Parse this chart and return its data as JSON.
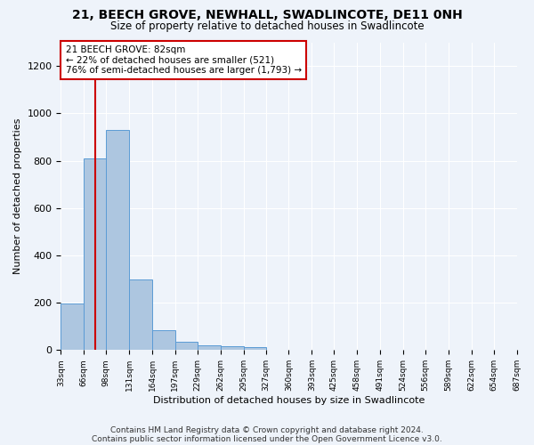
{
  "title": "21, BEECH GROVE, NEWHALL, SWADLINCOTE, DE11 0NH",
  "subtitle": "Size of property relative to detached houses in Swadlincote",
  "xlabel": "Distribution of detached houses by size in Swadlincote",
  "ylabel": "Number of detached properties",
  "footer_line1": "Contains HM Land Registry data © Crown copyright and database right 2024.",
  "footer_line2": "Contains public sector information licensed under the Open Government Licence v3.0.",
  "annotation_title": "21 BEECH GROVE: 82sqm",
  "annotation_line2": "← 22% of detached houses are smaller (521)",
  "annotation_line3": "76% of semi-detached houses are larger (1,793) →",
  "property_size": 82,
  "bin_edges": [
    33,
    66,
    98,
    131,
    164,
    197,
    229,
    262,
    295,
    327,
    360,
    393,
    425,
    458,
    491,
    524,
    556,
    589,
    622,
    654,
    687
  ],
  "bar_heights": [
    198,
    810,
    930,
    300,
    83,
    35,
    20,
    17,
    12,
    0,
    0,
    0,
    0,
    0,
    0,
    0,
    0,
    0,
    0,
    0
  ],
  "bar_color": "#adc6e0",
  "bar_edge_color": "#5b9bd5",
  "red_line_color": "#cc0000",
  "annotation_box_color": "#ffffff",
  "annotation_box_edge": "#cc0000",
  "background_color": "#eef3fa",
  "grid_color": "#ffffff",
  "ylim": [
    0,
    1300
  ],
  "yticks": [
    0,
    200,
    400,
    600,
    800,
    1000,
    1200
  ]
}
